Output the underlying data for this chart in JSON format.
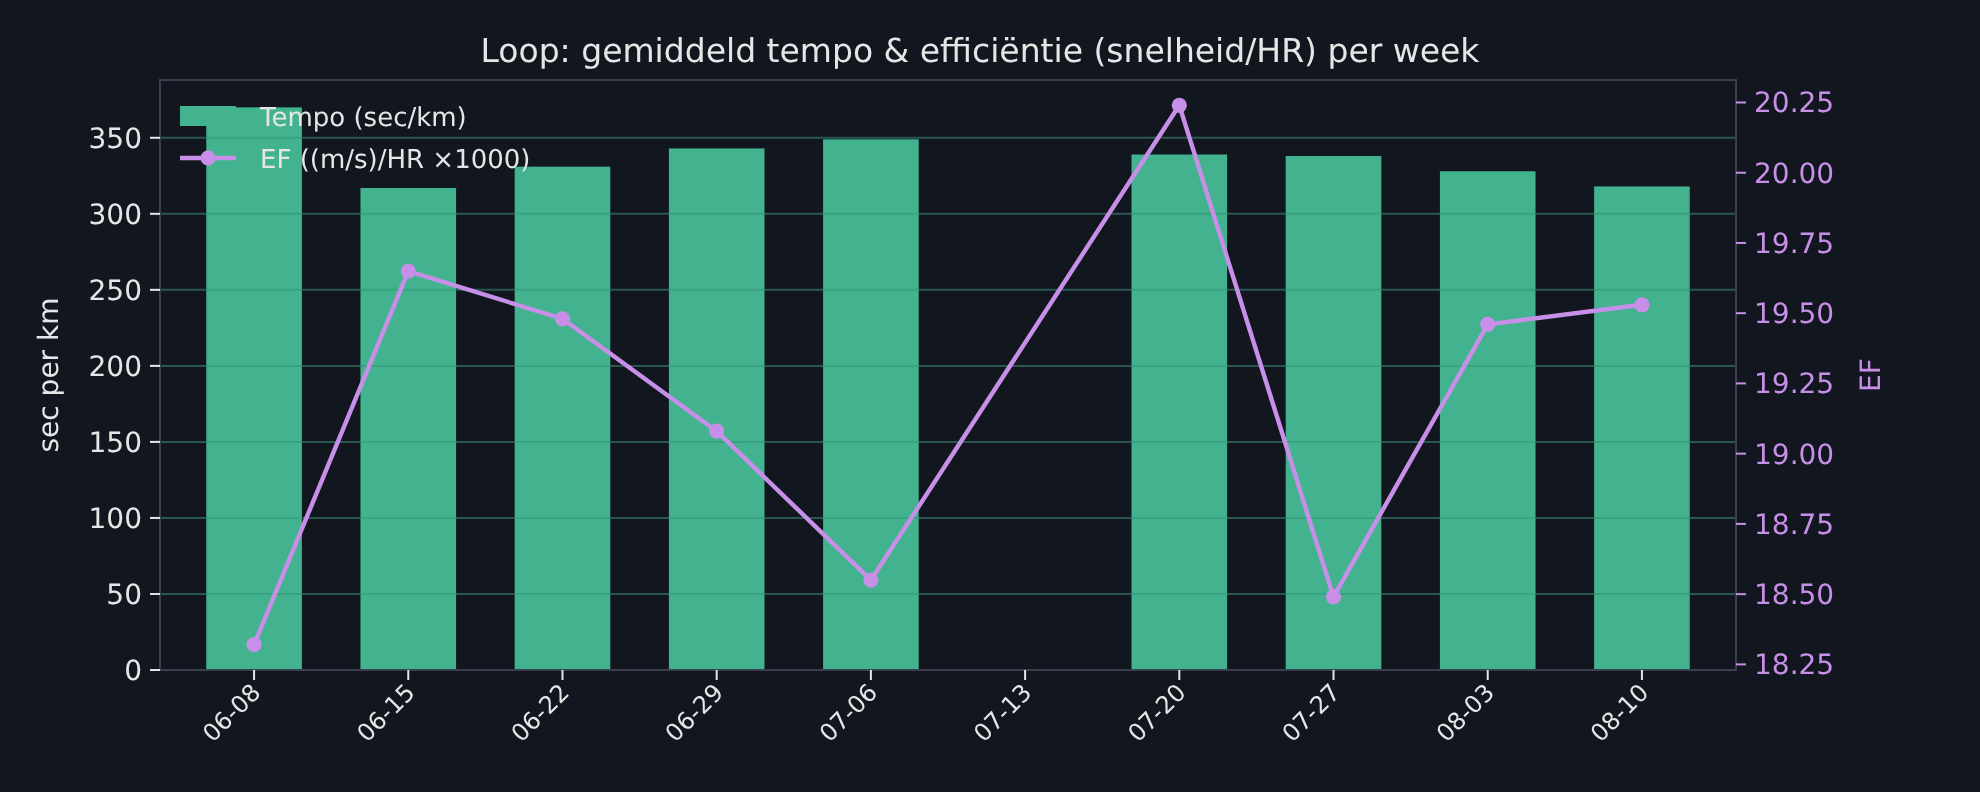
{
  "chart_data": {
    "type": "bar",
    "title": "Loop: gemiddeld tempo & efficiëntie (snelheid/HR) per week",
    "ylabel": "sec per km",
    "y2label": "EF",
    "categories": [
      "06-08",
      "06-15",
      "06-22",
      "06-29",
      "07-06",
      "07-13",
      "07-20",
      "07-27",
      "08-03",
      "08-10"
    ],
    "series": [
      {
        "name": "Tempo (sec/km)",
        "color": "#43b38f",
        "values": [
          370,
          317,
          331,
          343,
          349,
          null,
          339,
          338,
          328,
          318
        ]
      },
      {
        "name": "EF ((m/s)/HR ×1000)",
        "type": "line",
        "axis": "y2",
        "color": "#c88fe8",
        "values": [
          18.32,
          19.65,
          19.48,
          19.08,
          18.55,
          null,
          20.24,
          18.49,
          19.46,
          19.53
        ]
      }
    ],
    "ylim": [
      0,
      388
    ],
    "yticks": [
      0,
      50,
      100,
      150,
      200,
      250,
      300,
      350
    ],
    "y2lim": [
      18.23,
      20.33
    ],
    "y2ticks": [
      18.25,
      {
        "value": 18.5,
        "label": "18.50"
      },
      18.75,
      {
        "value": 19,
        "label": "19.00"
      },
      19.25,
      {
        "value": 19.5,
        "label": "19.50"
      },
      19.75,
      {
        "value": 20,
        "label": "20.00"
      },
      20.25
    ],
    "grid": "y",
    "legend": "top left",
    "marker": "circle",
    "line_style": "solid"
  }
}
